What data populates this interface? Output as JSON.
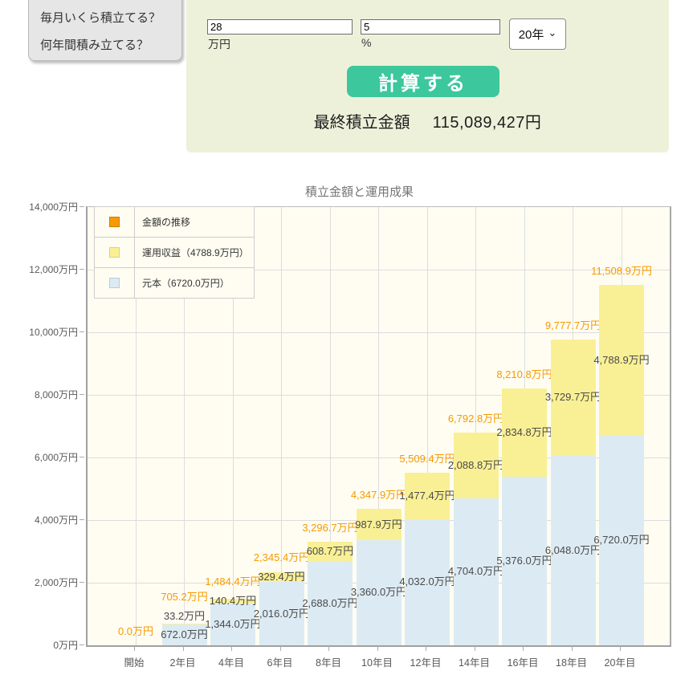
{
  "sidebar": {
    "items": [
      {
        "label": "毎月いくら積立てる？"
      },
      {
        "label": "何年間積み立てる？"
      }
    ]
  },
  "form": {
    "monthly_amount": {
      "value": "28",
      "unit": "万円"
    },
    "annual_rate": {
      "value": "5",
      "unit": "%"
    },
    "years": {
      "selected": "20年"
    },
    "calc_button_label": "計算する"
  },
  "result": {
    "label": "最終積立金額",
    "value": "115,089,427円"
  },
  "colors": {
    "button_teal": "#3cc79c",
    "panel_bg": "#eef1da",
    "chart_bg": "#fffdf2",
    "accent_orange": "#f59a00",
    "bar_yellow": "#f9f096",
    "bar_blue": "#dcebf3"
  },
  "chart_data": {
    "type": "bar",
    "stacked": true,
    "title": "積立金額と運用成果",
    "categories": [
      "開始",
      "2年目",
      "4年目",
      "6年目",
      "8年目",
      "10年目",
      "12年目",
      "14年目",
      "16年目",
      "18年目",
      "20年目"
    ],
    "series": [
      {
        "name": "元本",
        "fill": "#dcebf3",
        "swatch_border": "#b9cdd9",
        "values": [
          0,
          672.0,
          1344.0,
          2016.0,
          2688.0,
          3360.0,
          4032.0,
          4704.0,
          5376.0,
          6048.0,
          6720.0
        ]
      },
      {
        "name": "運用収益",
        "fill": "#f9f096",
        "swatch_border": "#ded277",
        "values": [
          0,
          33.2,
          140.4,
          329.4,
          608.7,
          987.9,
          1477.4,
          2088.8,
          2834.8,
          3729.7,
          4788.9
        ]
      }
    ],
    "totals": [
      0.0,
      705.2,
      1484.4,
      2345.4,
      3296.7,
      4347.9,
      5509.4,
      6792.8,
      8210.8,
      9777.7,
      11508.9
    ],
    "total_label_color": "#f59a00",
    "value_suffix": "万円",
    "legend": {
      "position": "top-left",
      "items": [
        {
          "label": "金額の推移",
          "fill": "#f59a00",
          "border": "#c87f00"
        },
        {
          "label": "運用収益（4788.9万円）",
          "fill": "#f9f096",
          "border": "#ded277"
        },
        {
          "label": "元本（6720.0万円）",
          "fill": "#dcebf3",
          "border": "#b9cdd9"
        }
      ]
    },
    "ylim": [
      0,
      14000
    ],
    "y_tick_step": 2000,
    "y_tick_suffix": "万円",
    "grid": true
  }
}
